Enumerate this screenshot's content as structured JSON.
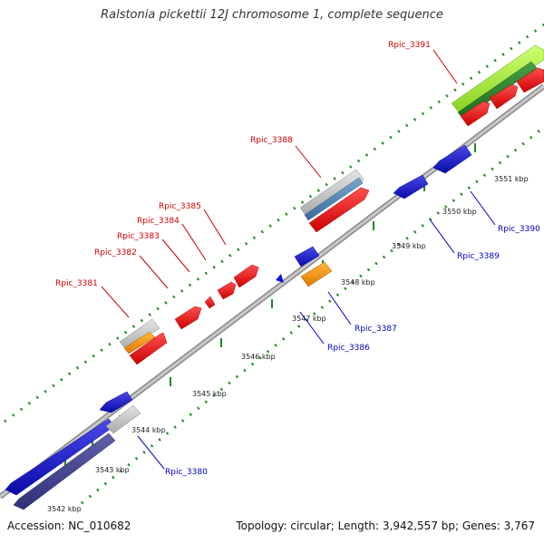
{
  "title": "Ralstonia pickettii 12J chromosome 1, complete sequence",
  "footer": {
    "accession": "Accession: NC_010682",
    "summary": "Topology: circular; Length: 3,942,557 bp; Genes: 3,767"
  },
  "colors": {
    "forward_cds": "#ee1111",
    "reverse_cds": "#1111dd",
    "rna_gene": "#a8f040",
    "orange_feature": "#ff9a00",
    "pseudo_gray": "#c8c8c8",
    "backbone": "#999999",
    "tick": "#228822",
    "label_forward": "#cc0000",
    "label_reverse": "#0000bb"
  },
  "scale_ticks": [
    "3542 kbp",
    "3543 kbp",
    "3544 kbp",
    "3545 kbp",
    "3546 kbp",
    "3547 kbp",
    "3548 kbp",
    "3549 kbp",
    "3550 kbp",
    "3551 kbp"
  ],
  "genes_forward": [
    {
      "label": "Rpic_3381"
    },
    {
      "label": "Rpic_3382"
    },
    {
      "label": "Rpic_3383"
    },
    {
      "label": "Rpic_3384"
    },
    {
      "label": "Rpic_3385"
    },
    {
      "label": "Rpic_3388"
    },
    {
      "label": "Rpic_3391"
    }
  ],
  "genes_reverse": [
    {
      "label": "Rpic_3380"
    },
    {
      "label": "Rpic_3386"
    },
    {
      "label": "Rpic_3387"
    },
    {
      "label": "Rpic_3389"
    },
    {
      "label": "Rpic_3390"
    }
  ]
}
